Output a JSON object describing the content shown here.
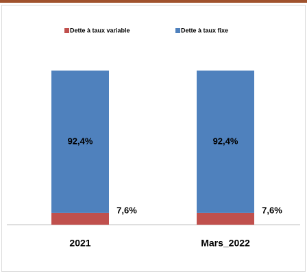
{
  "chart_data": {
    "type": "stacked_bar",
    "categories": [
      "2021",
      "Mars_2022"
    ],
    "series": [
      {
        "name": "Dette à taux variable",
        "color": "#c0504d",
        "values": [
          7.6,
          7.6
        ],
        "value_labels": [
          "7,6%",
          "7,6%"
        ]
      },
      {
        "name": "Dette à taux fixe",
        "color": "#4f81bd",
        "values": [
          92.4,
          92.4
        ],
        "value_labels": [
          "92,4%",
          "92,4%"
        ]
      }
    ]
  }
}
